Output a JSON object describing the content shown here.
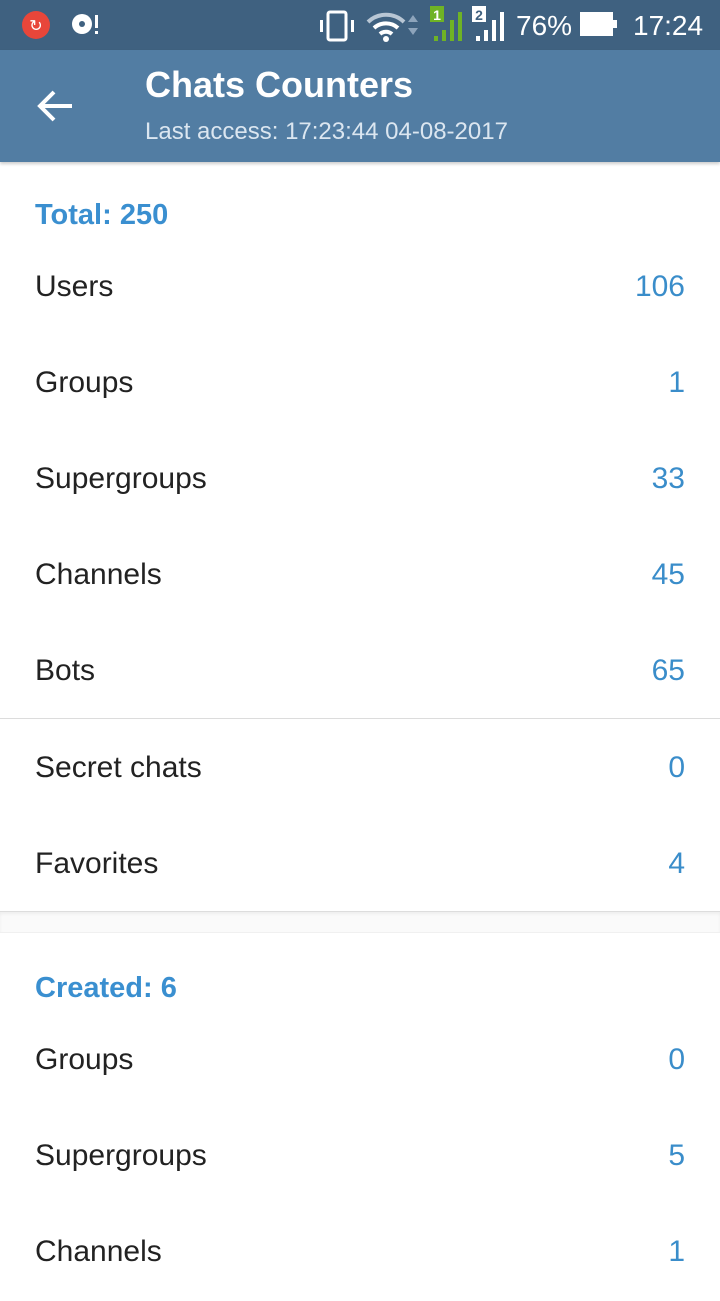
{
  "status_bar": {
    "battery": "76%",
    "time": "17:24",
    "icons": [
      "sync-error-icon",
      "disc-alert-icon",
      "vibrate-icon",
      "wifi-icon",
      "signal-sim1-icon",
      "signal-sim2-icon",
      "battery-icon"
    ]
  },
  "header": {
    "title": "Chats Counters",
    "subtitle": "Last access: 17:23:44 04-08-2017"
  },
  "total": {
    "label": "Total: 250",
    "items": [
      {
        "label": "Users",
        "value": "106"
      },
      {
        "label": "Groups",
        "value": "1"
      },
      {
        "label": "Supergroups",
        "value": "33"
      },
      {
        "label": "Channels",
        "value": "45"
      },
      {
        "label": "Bots",
        "value": "65"
      }
    ],
    "extra": [
      {
        "label": "Secret chats",
        "value": "0"
      },
      {
        "label": "Favorites",
        "value": "4"
      }
    ]
  },
  "created": {
    "label": "Created: 6",
    "items": [
      {
        "label": "Groups",
        "value": "0"
      },
      {
        "label": "Supergroups",
        "value": "5"
      },
      {
        "label": "Channels",
        "value": "1"
      }
    ]
  },
  "colors": {
    "status_bar": "#3f6180",
    "app_bar": "#527da3",
    "accent": "#3a8fd0"
  }
}
